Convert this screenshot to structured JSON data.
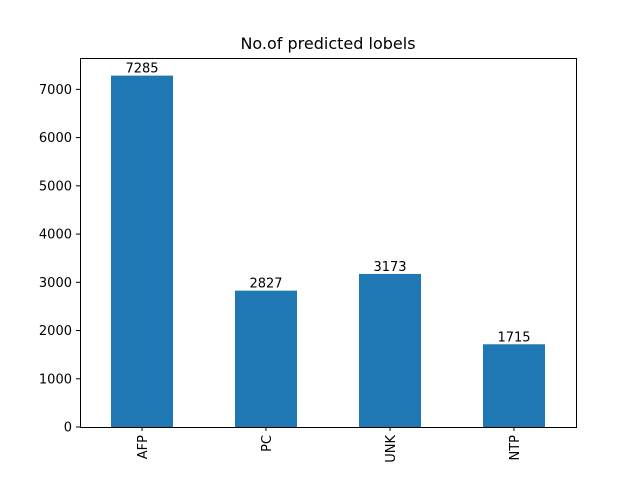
{
  "chart_data": {
    "type": "bar",
    "title": "No.of predicted lobels",
    "xlabel": "",
    "ylabel": "",
    "categories": [
      "AFP",
      "PC",
      "UNK",
      "NTP"
    ],
    "values": [
      7285,
      2827,
      3173,
      1715
    ],
    "value_labels": [
      "7285",
      "2827",
      "3173",
      "1715"
    ],
    "ylim": [
      0,
      7650
    ],
    "yticks": [
      0,
      1000,
      2000,
      3000,
      4000,
      5000,
      6000,
      7000
    ],
    "ytick_labels": [
      "0",
      "1000",
      "2000",
      "3000",
      "4000",
      "5000",
      "6000",
      "7000"
    ],
    "grid": false,
    "legend": "none",
    "bar_color": "#1f77b4",
    "xtick_rotation": "vertical"
  }
}
